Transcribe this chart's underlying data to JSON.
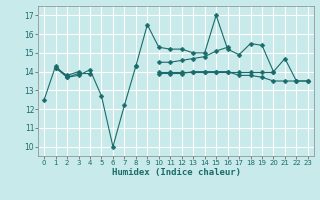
{
  "xlabel": "Humidex (Indice chaleur)",
  "background_color": "#c8eaea",
  "grid_color": "#ffffff",
  "line_color": "#1a6b6b",
  "xlim": [
    -0.5,
    23.5
  ],
  "ylim": [
    9.5,
    17.5
  ],
  "yticks": [
    10,
    11,
    12,
    13,
    14,
    15,
    16,
    17
  ],
  "xticks": [
    0,
    1,
    2,
    3,
    4,
    5,
    6,
    7,
    8,
    9,
    10,
    11,
    12,
    13,
    14,
    15,
    16,
    17,
    18,
    19,
    20,
    21,
    22,
    23
  ],
  "lines": [
    [
      12.5,
      14.3,
      13.7,
      13.8,
      14.1,
      12.7,
      10.0,
      12.2,
      14.3,
      16.5,
      15.3,
      15.2,
      15.2,
      15.0,
      15.0,
      17.0,
      15.2,
      14.9,
      15.5,
      15.4,
      14.0,
      14.7,
      13.5,
      13.5
    ],
    [
      null,
      14.2,
      13.7,
      13.9,
      13.9,
      null,
      null,
      null,
      14.3,
      null,
      14.5,
      14.5,
      14.6,
      14.7,
      14.8,
      15.1,
      15.3,
      null,
      null,
      null,
      null,
      null,
      null,
      null
    ],
    [
      null,
      null,
      null,
      null,
      null,
      null,
      null,
      null,
      null,
      null,
      14.0,
      14.0,
      14.0,
      14.0,
      14.0,
      14.0,
      14.0,
      14.0,
      14.0,
      14.0,
      14.0,
      null,
      null,
      null
    ],
    [
      null,
      14.2,
      13.8,
      14.0,
      null,
      null,
      null,
      null,
      null,
      null,
      13.9,
      13.9,
      13.9,
      14.0,
      14.0,
      14.0,
      14.0,
      13.8,
      13.8,
      13.7,
      13.5,
      13.5,
      13.5,
      13.5
    ]
  ]
}
